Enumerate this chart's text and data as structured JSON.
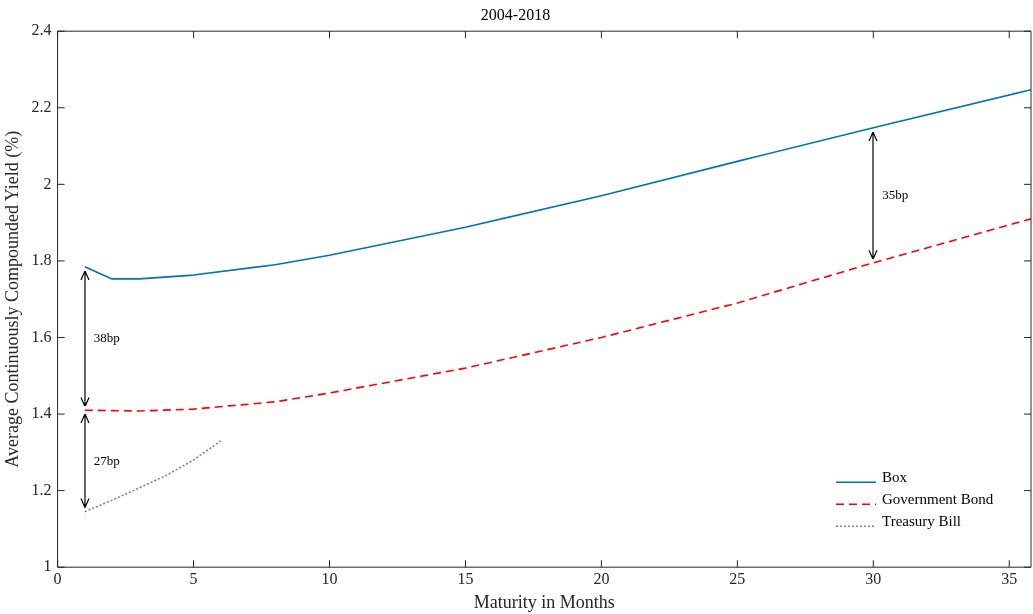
{
  "chart_data": {
    "type": "line",
    "title": "2004-2018",
    "xlabel": "Maturity in Months",
    "ylabel": "Average Continuously Compounded Yield (%)",
    "xlim": [
      0,
      35.8
    ],
    "xticks": [
      0,
      5,
      10,
      15,
      20,
      25,
      30,
      35
    ],
    "ylim": [
      1,
      2.4
    ],
    "yticks": [
      1,
      1.2,
      1.4,
      1.6,
      1.8,
      2,
      2.2,
      2.4
    ],
    "grid": false,
    "legend": "bottom right",
    "marker": "none",
    "series": [
      {
        "name": "Box",
        "color": "#0072bd",
        "line_style": "solid",
        "x": [
          1,
          2,
          3,
          5,
          8,
          10,
          15,
          20,
          25,
          30,
          35.8
        ],
        "values": [
          1.785,
          1.753,
          1.753,
          1.763,
          1.79,
          1.815,
          1.888,
          1.97,
          2.06,
          2.148,
          2.247
        ]
      },
      {
        "name": "Government Bond",
        "color": "#ff0000",
        "line_style": "dashed",
        "x": [
          1,
          3,
          5,
          8,
          10,
          15,
          20,
          25,
          30,
          35.8
        ],
        "values": [
          1.41,
          1.408,
          1.413,
          1.432,
          1.455,
          1.52,
          1.6,
          1.69,
          1.795,
          1.91
        ]
      },
      {
        "name": "Treasury Bill",
        "color": "#808080",
        "line_style": "dotted",
        "x": [
          1,
          2,
          3,
          4,
          5,
          6
        ],
        "values": [
          1.145,
          1.175,
          1.207,
          1.24,
          1.28,
          1.33
        ]
      }
    ],
    "annotations": [
      "38bp",
      "27bp",
      "35bp"
    ]
  }
}
